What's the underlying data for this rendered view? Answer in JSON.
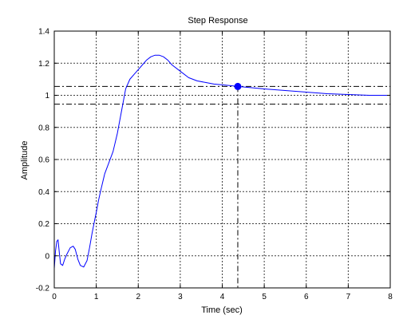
{
  "chart_data": {
    "type": "line",
    "title": "Step Response",
    "xlabel": "Time (sec)",
    "ylabel": "Amplitude",
    "xlim": [
      0,
      8
    ],
    "ylim": [
      -0.2,
      1.4
    ],
    "x_ticks": [
      0,
      1,
      2,
      3,
      4,
      5,
      6,
      7,
      8
    ],
    "x_tick_labels": [
      "0",
      "1",
      "2",
      "3",
      "4",
      "5",
      "6",
      "7",
      "8"
    ],
    "y_ticks": [
      -0.2,
      0,
      0.2,
      0.4,
      0.6,
      0.8,
      1,
      1.2,
      1.4
    ],
    "y_tick_labels": [
      "-0.2",
      "0",
      "0.2",
      "0.4",
      "0.6",
      "0.8",
      "1",
      "1.2",
      "1.4"
    ],
    "grid": true,
    "series": [
      {
        "color": "#0000ff",
        "x": [
          0,
          0.03,
          0.06,
          0.09,
          0.12,
          0.15,
          0.2,
          0.25,
          0.3,
          0.38,
          0.45,
          0.5,
          0.56,
          0.62,
          0.7,
          0.78,
          0.84,
          0.9,
          0.96,
          1.0,
          1.05,
          1.1,
          1.2,
          1.3,
          1.4,
          1.5,
          1.6,
          1.7,
          1.8,
          1.9,
          2.0,
          2.1,
          2.2,
          2.3,
          2.4,
          2.5,
          2.6,
          2.7,
          2.8,
          3.0,
          3.2,
          3.4,
          3.6,
          3.8,
          4.0,
          4.2,
          4.37,
          4.6,
          5.0,
          5.5,
          6.0,
          6.5,
          7.0,
          7.5,
          8.0
        ],
        "y": [
          -0.08,
          0.03,
          0.09,
          0.1,
          0.02,
          -0.05,
          -0.06,
          -0.02,
          0.01,
          0.05,
          0.06,
          0.04,
          -0.02,
          -0.06,
          -0.07,
          -0.03,
          0.05,
          0.14,
          0.22,
          0.27,
          0.34,
          0.4,
          0.51,
          0.58,
          0.65,
          0.76,
          0.9,
          1.04,
          1.1,
          1.13,
          1.16,
          1.19,
          1.22,
          1.24,
          1.25,
          1.25,
          1.24,
          1.22,
          1.19,
          1.15,
          1.11,
          1.09,
          1.08,
          1.07,
          1.065,
          1.06,
          1.055,
          1.05,
          1.04,
          1.03,
          1.02,
          1.01,
          1.005,
          1.0,
          1.0
        ]
      }
    ],
    "settling_band": [
      0.945,
      1.055
    ],
    "settling_marker": {
      "x": 4.37,
      "y": 1.055,
      "color": "#0000ff"
    },
    "reference_color": "#000000",
    "grid_color": "#000000",
    "frame_color": "#000000"
  }
}
